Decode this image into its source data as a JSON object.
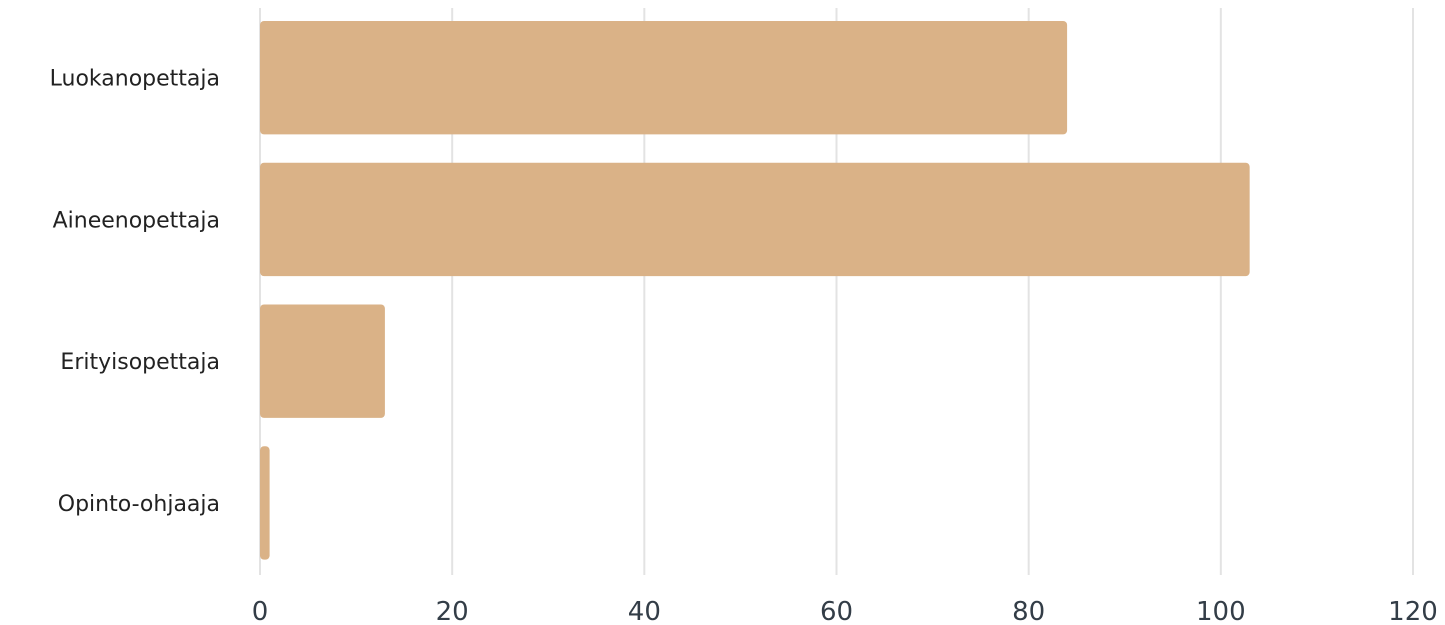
{
  "chart_data": {
    "type": "bar",
    "orientation": "horizontal",
    "categories": [
      "Luokanopettaja",
      "Aineenopettaja",
      "Erityisopettaja",
      "Opinto-ohjaaja"
    ],
    "values": [
      84,
      103,
      13,
      1
    ],
    "xlim": [
      0,
      120
    ],
    "x_ticks": [
      "0",
      "20",
      "40",
      "60",
      "80",
      "100",
      "120"
    ],
    "grid": "vertical",
    "legend": "none",
    "bar_color": "#dab287",
    "title": "",
    "xlabel": "",
    "ylabel": ""
  }
}
